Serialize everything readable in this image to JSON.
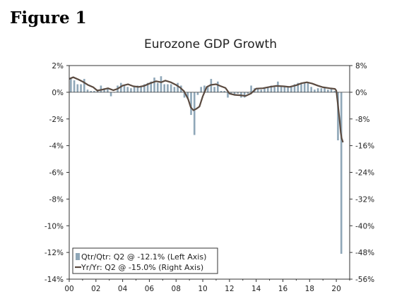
{
  "figure_label": "Figure 1",
  "chart_data": {
    "type": "bar+line",
    "title": "Eurozone GDP Growth",
    "xlabel": "",
    "ylabel_left": "",
    "ylabel_right": "",
    "x_tick_labels": [
      "00",
      "02",
      "04",
      "06",
      "08",
      "10",
      "12",
      "14",
      "16",
      "18",
      "20"
    ],
    "xlim": [
      2000,
      2021
    ],
    "ylim_left": [
      -14,
      2
    ],
    "ylim_right": [
      -56,
      8
    ],
    "y_left_ticks": [
      2,
      0,
      -2,
      -4,
      -6,
      -8,
      -10,
      -12,
      -14
    ],
    "y_left_tick_labels": [
      "2%",
      "0%",
      "-2%",
      "-4%",
      "-6%",
      "-8%",
      "-10%",
      "-12%",
      "-14%"
    ],
    "y_right_ticks": [
      8,
      0,
      -8,
      -16,
      -24,
      -32,
      -40,
      -48,
      -56
    ],
    "y_right_tick_labels": [
      "8%",
      "0%",
      "-8%",
      "-16%",
      "-24%",
      "-32%",
      "-40%",
      "-48%",
      "-56%"
    ],
    "grid": false,
    "legend_position": "bottom-left",
    "series": [
      {
        "name": "Qtr/Qtr: Q2 @ -12.1% (Left Axis)",
        "type": "bar",
        "axis": "left",
        "color": "#8fa7b8",
        "x_start": 2000.0,
        "step": 0.25,
        "values": [
          1.0,
          0.9,
          0.6,
          0.6,
          1.0,
          0.2,
          0.1,
          0.1,
          0.2,
          0.5,
          0.3,
          0.3,
          -0.3,
          0.0,
          0.5,
          0.7,
          0.5,
          0.4,
          0.3,
          0.4,
          0.5,
          0.4,
          0.6,
          0.7,
          0.8,
          1.1,
          0.7,
          1.2,
          0.6,
          0.6,
          0.6,
          0.4,
          0.7,
          0.5,
          -0.4,
          -0.5,
          -1.7,
          -3.2,
          -0.2,
          0.4,
          0.5,
          0.4,
          1.0,
          0.4,
          0.8,
          0.1,
          0.1,
          -0.4,
          -0.1,
          -0.2,
          -0.1,
          -0.4,
          -0.4,
          -0.1,
          0.5,
          0.3,
          0.3,
          0.2,
          0.3,
          0.4,
          0.5,
          0.4,
          0.8,
          0.4,
          0.5,
          0.4,
          0.4,
          0.6,
          0.7,
          0.7,
          0.7,
          0.7,
          0.4,
          0.2,
          0.3,
          0.3,
          0.4,
          0.2,
          0.3,
          0.1,
          -3.6,
          -12.1
        ]
      },
      {
        "name": "Yr/Yr: Q2 @ -15.0% (Right Axis)",
        "type": "line",
        "axis": "right",
        "color": "#5a4a40",
        "x": [
          2000.0,
          2000.3,
          2000.7,
          2001.0,
          2001.4,
          2001.8,
          2002.1,
          2002.5,
          2002.9,
          2003.3,
          2003.6,
          2004.0,
          2004.4,
          2004.8,
          2005.2,
          2005.6,
          2006.0,
          2006.5,
          2006.9,
          2007.2,
          2007.6,
          2008.0,
          2008.3,
          2008.6,
          2008.9,
          2009.1,
          2009.3,
          2009.5,
          2009.75,
          2010.0,
          2010.3,
          2010.6,
          2011.0,
          2011.3,
          2011.7,
          2012.0,
          2012.4,
          2012.8,
          2013.2,
          2013.6,
          2014.0,
          2014.5,
          2015.0,
          2015.5,
          2016.0,
          2016.5,
          2017.0,
          2017.4,
          2017.8,
          2018.2,
          2018.6,
          2019.0,
          2019.5,
          2019.9,
          2020.0,
          2020.1,
          2020.25,
          2020.33,
          2020.4,
          2020.5
        ],
        "values": [
          4.0,
          4.5,
          3.8,
          3.2,
          2.2,
          1.5,
          0.5,
          0.8,
          1.2,
          0.6,
          1.0,
          2.0,
          2.4,
          1.8,
          1.6,
          1.9,
          2.6,
          3.3,
          3.0,
          3.5,
          3.0,
          2.2,
          1.4,
          0.3,
          -2.0,
          -4.5,
          -5.4,
          -5.0,
          -4.3,
          -1.2,
          1.6,
          2.2,
          2.4,
          1.9,
          1.3,
          -0.4,
          -0.8,
          -0.9,
          -1.1,
          -0.4,
          1.1,
          1.2,
          1.6,
          1.9,
          1.8,
          1.6,
          2.1,
          2.7,
          3.0,
          2.6,
          2.0,
          1.5,
          1.2,
          1.0,
          0.5,
          -3.0,
          -8.5,
          -12.0,
          -13.8,
          -15.0
        ]
      }
    ]
  }
}
